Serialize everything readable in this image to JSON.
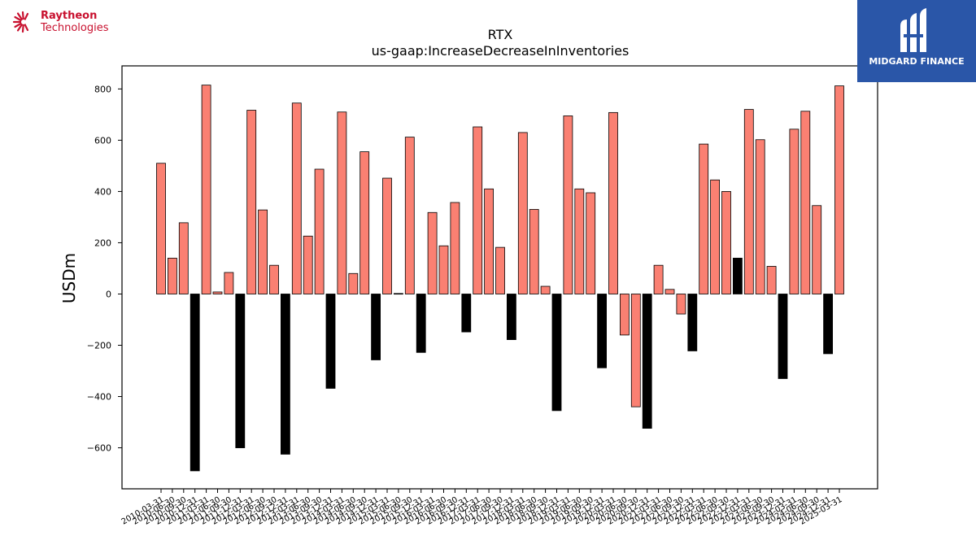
{
  "logos": {
    "left": {
      "line1": "Raytheon",
      "line2": "Technologies",
      "color": "#c8102e"
    },
    "right": {
      "text": "MIDGARD FINANCE",
      "bg": "#2a56a8"
    }
  },
  "chart_data": {
    "type": "bar",
    "title": "RTX",
    "subtitle": "us-gaap:IncreaseDecreaseInInventories",
    "xlabel": "",
    "ylabel": "USDm",
    "ylim": [
      -760,
      890
    ],
    "yticks": [
      800,
      600,
      400,
      200,
      0,
      -200,
      -400,
      -600
    ],
    "grid": false,
    "colors": {
      "bar": "#fa8072",
      "annual": "#000000",
      "edge": "#000000"
    },
    "categories": [
      "2010-03-31",
      "2010-06-30",
      "2010-09-30",
      "2010-12-31",
      "2011-03-31",
      "2011-06-30",
      "2011-09-30",
      "2011-12-31",
      "2012-03-31",
      "2012-06-30",
      "2012-09-30",
      "2012-12-31",
      "2013-03-31",
      "2013-06-30",
      "2013-09-30",
      "2013-12-31",
      "2014-03-31",
      "2014-06-30",
      "2014-09-30",
      "2014-12-31",
      "2015-03-31",
      "2015-06-30",
      "2015-09-30",
      "2015-12-31",
      "2016-03-31",
      "2016-06-30",
      "2016-09-30",
      "2016-12-31",
      "2017-03-31",
      "2017-06-30",
      "2017-09-30",
      "2017-12-31",
      "2018-03-31",
      "2018-06-30",
      "2018-09-30",
      "2018-12-31",
      "2019-03-31",
      "2019-06-30",
      "2019-09-30",
      "2019-12-31",
      "2020-03-31",
      "2020-06-30",
      "2020-09-30",
      "2020-12-31",
      "2021-03-31",
      "2021-06-30",
      "2021-09-30",
      "2021-12-31",
      "2022-03-31",
      "2022-06-30",
      "2022-09-30",
      "2022-12-31",
      "2023-03-31",
      "2023-06-30",
      "2023-09-30",
      "2023-12-31",
      "2024-03-31",
      "2024-06-30",
      "2024-09-30",
      "2024-12-31",
      "2025-03-31"
    ],
    "values": [
      510,
      140,
      278,
      -690,
      815,
      8,
      84,
      -600,
      717,
      328,
      112,
      -625,
      745,
      226,
      487,
      -368,
      710,
      80,
      555,
      -257,
      452,
      2,
      612,
      -228,
      318,
      188,
      357,
      -148,
      652,
      410,
      182,
      -178,
      630,
      330,
      30,
      -455,
      695,
      410,
      395,
      -288,
      708,
      -160,
      -440,
      -524,
      112,
      18,
      -78,
      -222,
      585,
      445,
      400,
      140,
      720,
      602,
      108,
      -330,
      643,
      713,
      345,
      -233,
      812
    ],
    "annual_flags": [
      0,
      0,
      0,
      1,
      0,
      0,
      0,
      1,
      0,
      0,
      0,
      1,
      0,
      0,
      0,
      1,
      0,
      0,
      0,
      1,
      0,
      0,
      0,
      1,
      0,
      0,
      0,
      1,
      0,
      0,
      0,
      1,
      0,
      0,
      0,
      1,
      0,
      0,
      0,
      1,
      0,
      0,
      0,
      1,
      0,
      0,
      0,
      1,
      0,
      0,
      0,
      1,
      0,
      0,
      0,
      1,
      0,
      0,
      0,
      1,
      0
    ]
  }
}
